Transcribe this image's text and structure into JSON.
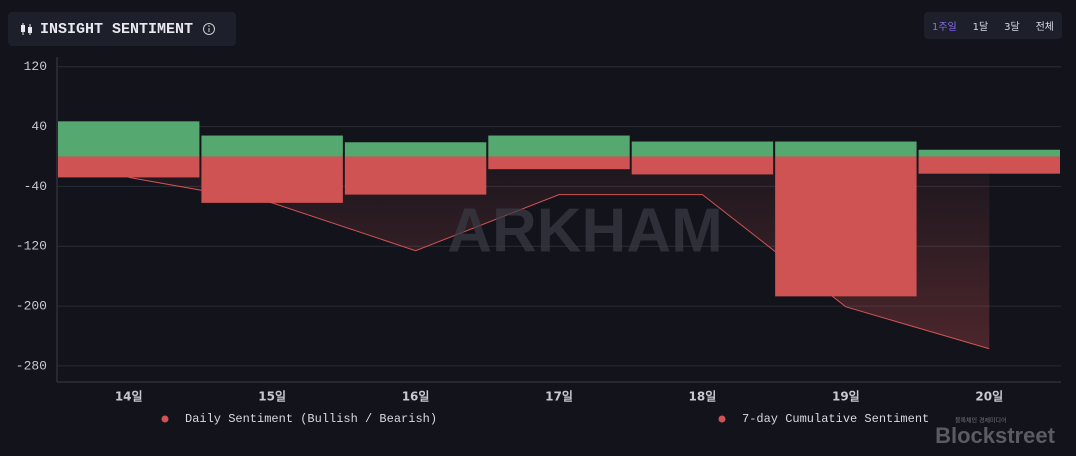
{
  "header": {
    "title": "INSIGHT SENTIMENT",
    "tabs": [
      "1주일",
      "1달",
      "3달",
      "전체"
    ],
    "active_tab": 0
  },
  "watermarks": {
    "arkham": "ARKHAM",
    "brand": "Blockstreet",
    "brand_sub": "블록체인 경제미디어"
  },
  "chart_data": {
    "type": "bar",
    "categories": [
      "14일",
      "15일",
      "16일",
      "17일",
      "18일",
      "19일",
      "20일"
    ],
    "ylim": [
      -301.5,
      133
    ],
    "yticks": [
      120,
      40,
      -40,
      -120,
      -200,
      -280
    ],
    "grid": true,
    "series": [
      {
        "name": "Daily Sentiment (Bullish / Bearish)",
        "type": "bar",
        "colors": [
          "#55a870",
          "#d05353"
        ],
        "bullish": [
          47,
          28,
          19,
          28,
          20,
          20,
          9
        ],
        "bearish": [
          -28,
          -62,
          -51,
          -17,
          -24,
          -187,
          -23
        ]
      },
      {
        "name": "7-day Cumulative Sentiment",
        "type": "line",
        "color": "#d05353",
        "values": [
          -28,
          -62,
          -126,
          -51,
          -51,
          -201,
          -257
        ]
      }
    ]
  }
}
